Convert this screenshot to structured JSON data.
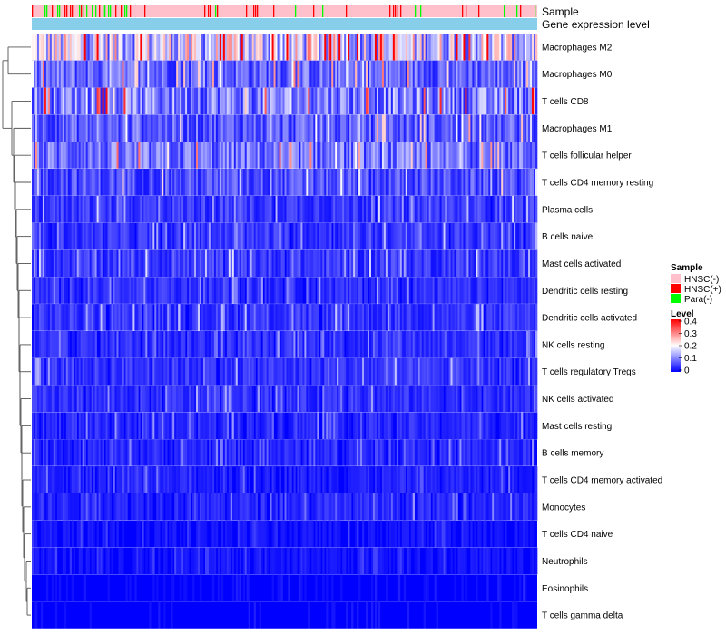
{
  "chart_data": {
    "type": "heatmap",
    "annotation_labels": [
      "Sample",
      "Gene expression level"
    ],
    "rows": [
      {
        "name": "Macrophages M2",
        "mean": 0.17
      },
      {
        "name": "Macrophages M0",
        "mean": 0.08
      },
      {
        "name": "T cells CD8",
        "mean": 0.1
      },
      {
        "name": "Macrophages M1",
        "mean": 0.07
      },
      {
        "name": "T cells follicular helper",
        "mean": 0.085
      },
      {
        "name": "T cells CD4 memory resting",
        "mean": 0.06
      },
      {
        "name": "Plasma cells",
        "mean": 0.045
      },
      {
        "name": "B cells naive",
        "mean": 0.04
      },
      {
        "name": "Mast cells activated",
        "mean": 0.045
      },
      {
        "name": "Dendritic cells resting",
        "mean": 0.035
      },
      {
        "name": "Dendritic cells activated",
        "mean": 0.04
      },
      {
        "name": "NK cells resting",
        "mean": 0.035
      },
      {
        "name": "T cells regulatory  Tregs",
        "mean": 0.04
      },
      {
        "name": "NK cells activated",
        "mean": 0.035
      },
      {
        "name": "Mast cells resting",
        "mean": 0.03
      },
      {
        "name": "B cells memory",
        "mean": 0.03
      },
      {
        "name": "T cells CD4 memory activated",
        "mean": 0.025
      },
      {
        "name": "Monocytes",
        "mean": 0.03
      },
      {
        "name": "T cells CD4 naive",
        "mean": 0.015
      },
      {
        "name": "Neutrophils",
        "mean": 0.015
      },
      {
        "name": "Eosinophils",
        "mean": 0.008
      },
      {
        "name": "T cells gamma delta",
        "mean": 0.006
      }
    ],
    "sample_legend": {
      "title": "Sample",
      "entries": [
        {
          "label": "HNSC(-)",
          "color": "#FFC0CB"
        },
        {
          "label": "HNSC(+)",
          "color": "#FF0000"
        },
        {
          "label": "Para(-)",
          "color": "#00FF00"
        }
      ]
    },
    "level_legend": {
      "title": "Level",
      "ticks": [
        "0.4",
        "0.3",
        "0.2",
        "0.1",
        "0"
      ],
      "range": [
        0,
        0.4
      ],
      "colors": [
        "#0000FF",
        "#FFFFFF",
        "#FF0000"
      ]
    },
    "expression_bar_color": "#87CEEB",
    "dendrogram_color": "#555555"
  }
}
